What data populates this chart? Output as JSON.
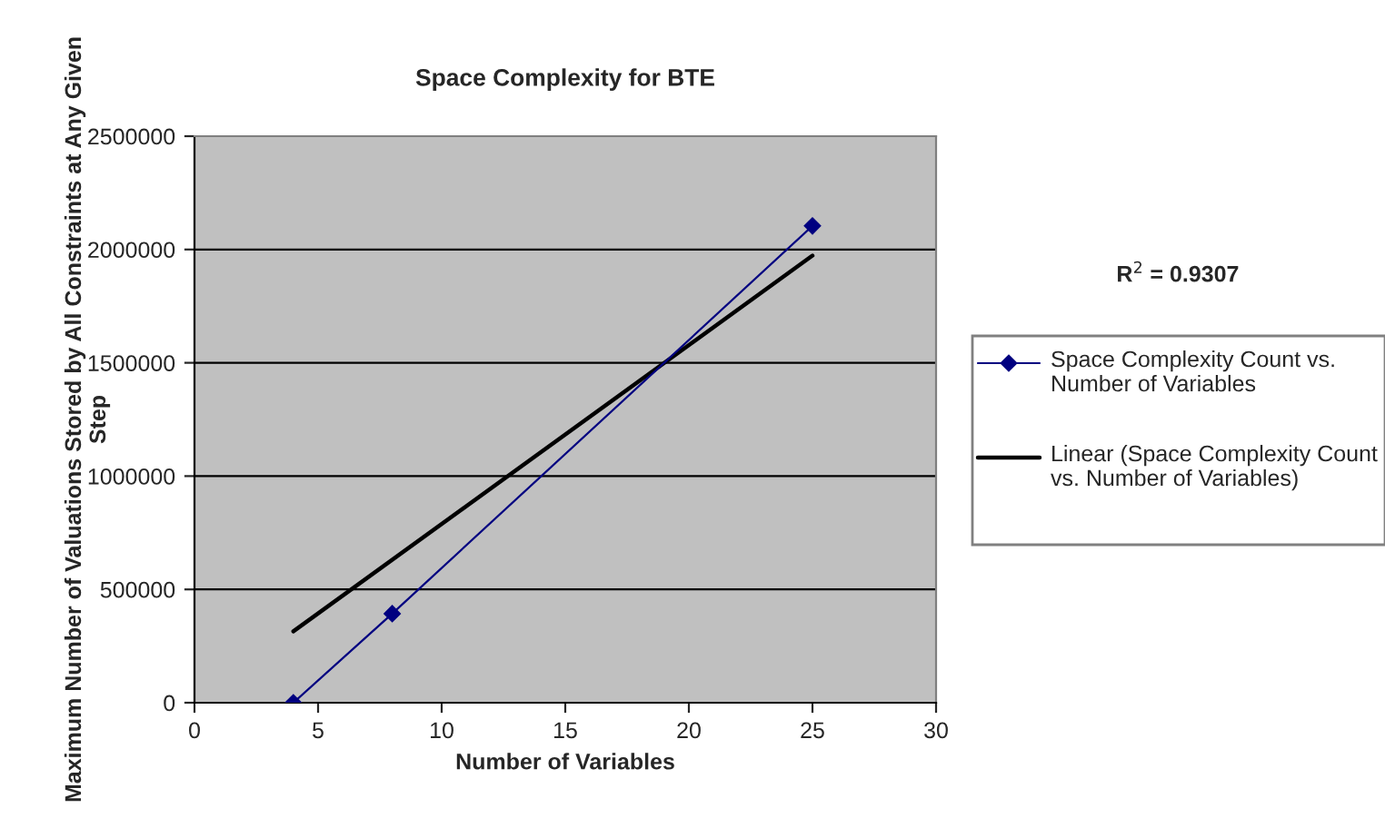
{
  "chart_data": {
    "type": "line",
    "title": "Space Complexity for BTE",
    "xlabel": "Number of Variables",
    "ylabel": "Maximum Number of Valuations Stored by All Constraints at Any Given Step",
    "x": [
      4,
      8,
      25
    ],
    "series": [
      {
        "name": "Space Complexity Count vs. Number of Variables",
        "color": "#000080",
        "values": [
          0,
          393000,
          2104000
        ],
        "marker": "diamond"
      },
      {
        "name": "Linear (Space Complexity Count vs. Number of Variables)",
        "color": "#000000",
        "x": [
          4,
          25
        ],
        "values": [
          315000,
          1973000
        ],
        "marker": "none"
      }
    ],
    "xlim": [
      0,
      30
    ],
    "xticks": [
      0,
      5,
      10,
      15,
      20,
      25,
      30
    ],
    "ylim": [
      0,
      2500000
    ],
    "yticks": [
      0,
      500000,
      1000000,
      1500000,
      2000000,
      2500000
    ],
    "grid": "y",
    "legend": "right",
    "annotations": [
      "R$^{2}$ = 0.9307"
    ]
  }
}
